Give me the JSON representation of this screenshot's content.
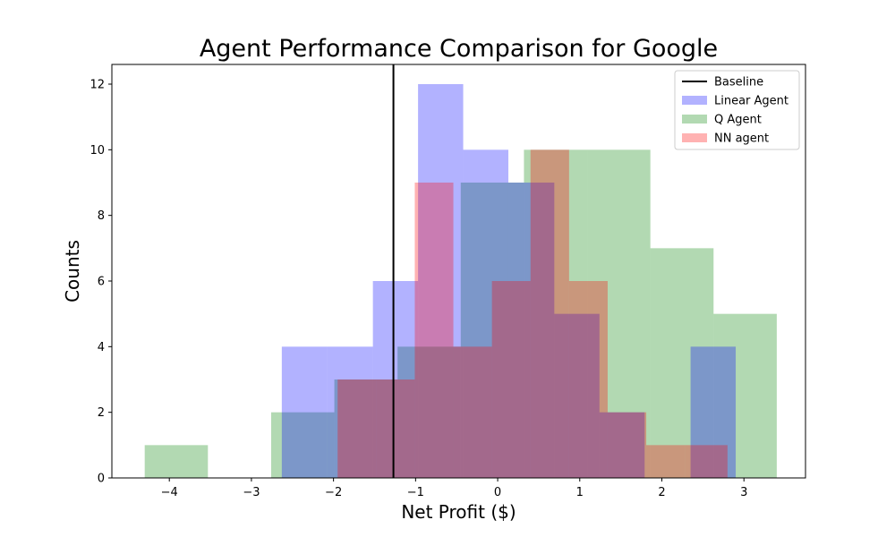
{
  "chart_data": {
    "type": "histogram",
    "title": "Agent Performance Comparison for Google",
    "xlabel": "Net Profit ($)",
    "ylabel": "Counts",
    "xlim": [
      -4.7,
      3.75
    ],
    "ylim": [
      0,
      12.6
    ],
    "x_ticks": [
      -4,
      -3,
      -2,
      -1,
      0,
      1,
      2,
      3
    ],
    "x_tick_labels": [
      "−4",
      "−3",
      "−2",
      "−1",
      "0",
      "1",
      "2",
      "3"
    ],
    "y_ticks": [
      0,
      2,
      4,
      6,
      8,
      10,
      12
    ],
    "y_tick_labels": [
      "0",
      "2",
      "4",
      "6",
      "8",
      "10",
      "12"
    ],
    "legend_position": "top-right",
    "grid": false,
    "baseline": {
      "name": "Baseline",
      "x": -1.27,
      "color": "#000000"
    },
    "series": [
      {
        "name": "Q Agent",
        "color": "#008000",
        "opacity": 0.3,
        "bin_edges": [
          -4.3,
          -3.53,
          -2.76,
          -1.99,
          -1.22,
          -0.45,
          0.32,
          1.09,
          1.86,
          2.63,
          3.4
        ],
        "counts": [
          1,
          0,
          2,
          3,
          4,
          9,
          10,
          10,
          7,
          5
        ]
      },
      {
        "name": "Linear Agent",
        "color": "#0000ff",
        "opacity": 0.3,
        "bin_edges": [
          -2.63,
          -2.08,
          -1.52,
          -0.97,
          -0.42,
          0.13,
          0.69,
          1.24,
          1.79,
          2.35,
          2.9
        ],
        "counts": [
          4,
          4,
          6,
          12,
          10,
          9,
          5,
          2,
          0,
          4
        ]
      },
      {
        "name": "NN agent",
        "color": "#ff0000",
        "opacity": 0.3,
        "bin_edges": [
          -1.95,
          -1.48,
          -1.01,
          -0.54,
          -0.07,
          0.4,
          0.87,
          1.34,
          1.81,
          2.28,
          2.8
        ],
        "counts": [
          3,
          3,
          9,
          4,
          6,
          10,
          6,
          2,
          1,
          1
        ]
      }
    ],
    "legend_order": [
      "Baseline",
      "Linear Agent",
      "Q Agent",
      "NN agent"
    ]
  }
}
